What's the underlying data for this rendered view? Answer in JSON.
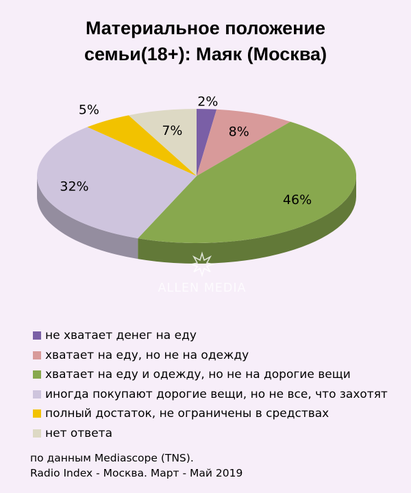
{
  "title_line1": "Материальное положение",
  "title_line2": "семьи(18+): Маяк (Москва)",
  "chart_data": {
    "type": "pie",
    "title": "Материальное положение семьи(18+): Маяк (Москва)",
    "categories": [
      "не хватает денег на еду",
      "хватает на еду, но не на одежду",
      "хватает на еду и одежду, но не на дорогие вещи",
      "иногда покупают дорогие вещи, но не все, что захотят",
      "полный достаток, не ограничены в средствах",
      "нет ответа"
    ],
    "values": [
      2,
      8,
      46,
      32,
      5,
      7
    ],
    "labels": [
      "2%",
      "8%",
      "46%",
      "32%",
      "5%",
      "7%"
    ],
    "colors": [
      "#7a5fa6",
      "#d89a9a",
      "#88a84e",
      "#cec4dd",
      "#f2c200",
      "#ddd9c4"
    ],
    "legend_position": "bottom"
  },
  "watermark": "ALLEN MEDIA",
  "source_line1": "по данным Mediascope (TNS).",
  "source_line2": "Radio Index - Москва. Март - Май 2019"
}
